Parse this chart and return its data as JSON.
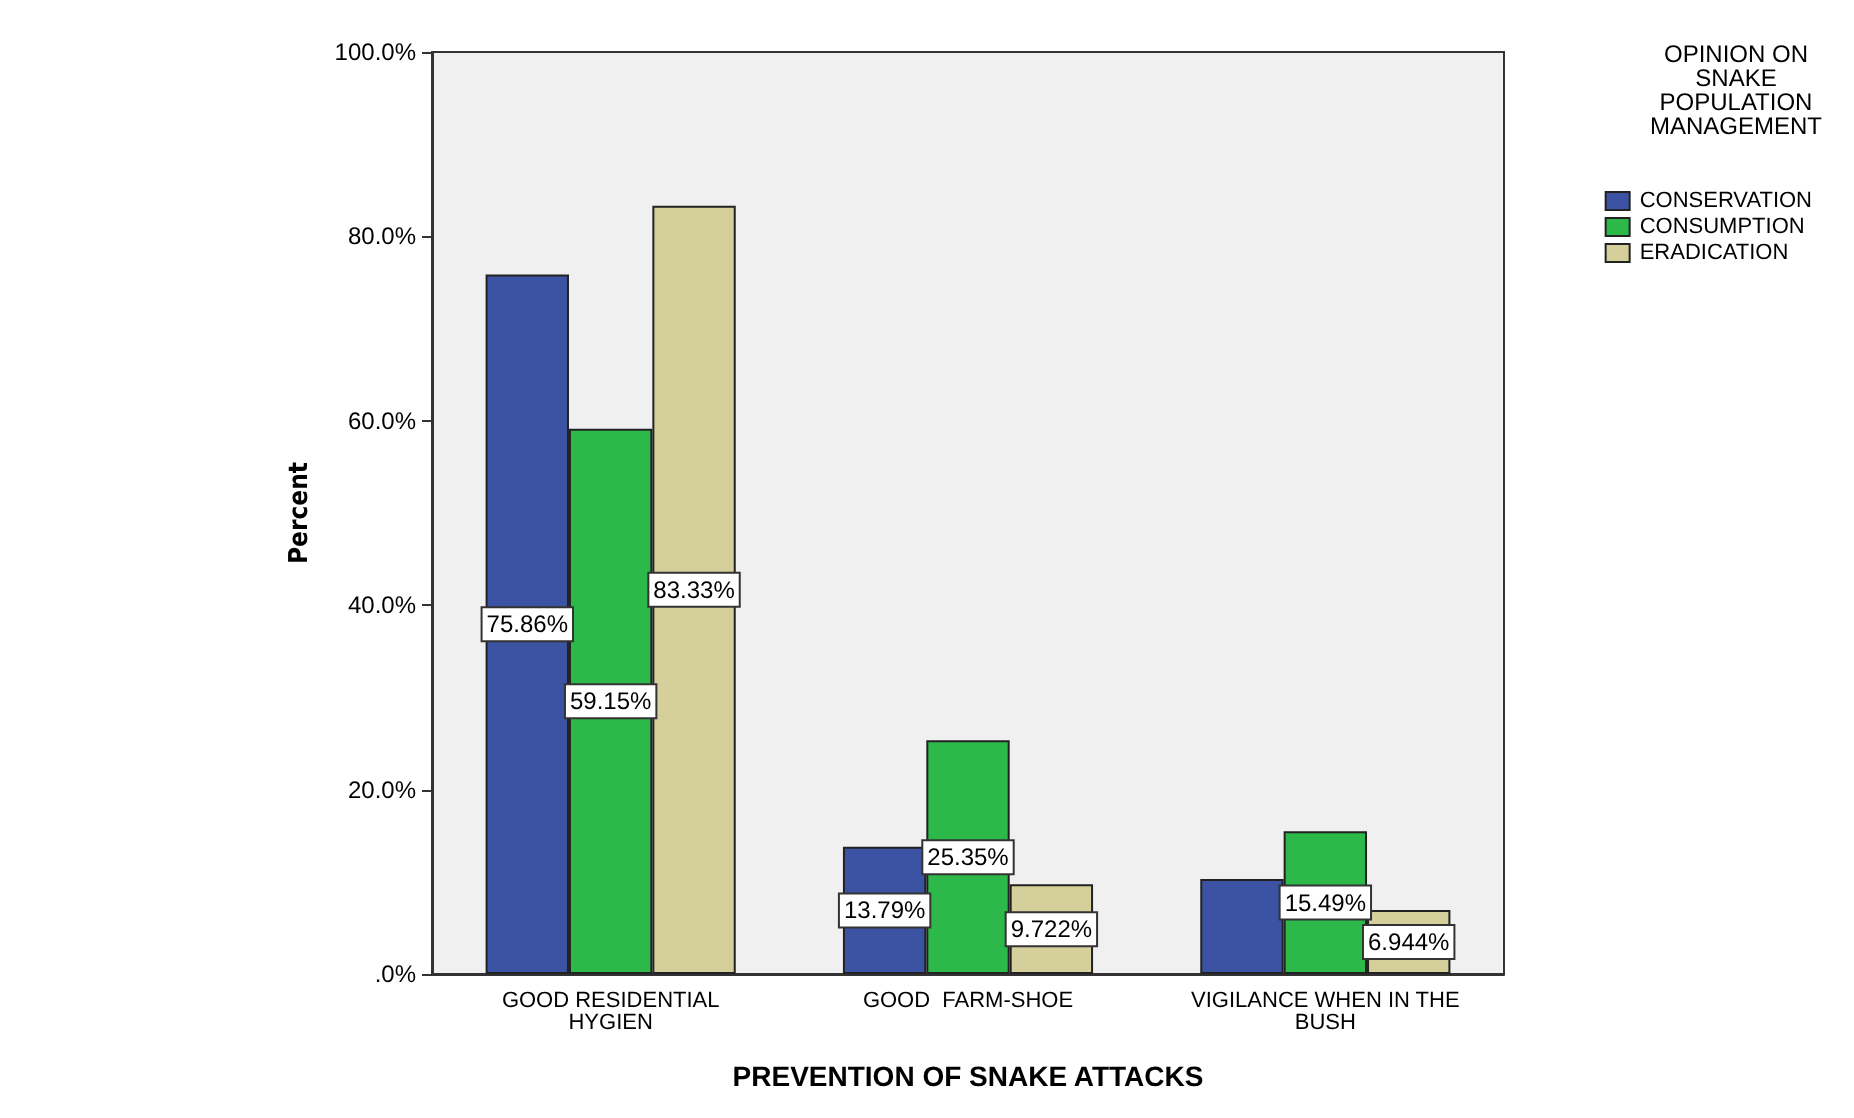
{
  "chart_data": {
    "type": "bar",
    "xlabel": "PREVENTION OF SNAKE ATTACKS",
    "ylabel": "Percent",
    "legend_title": "OPINION ON\nSNAKE\nPOPULATION\nMANAGEMENT",
    "legend": "right",
    "grid": false,
    "categories": [
      "GOOD RESIDENTIAL\nHYGIEN",
      "GOOD  FARM-SHOE",
      "VIGILANCE WHEN IN THE\nBUSH"
    ],
    "ylim": [
      0,
      100
    ],
    "yticks": [
      {
        "value": 0,
        "label": ".0%"
      },
      {
        "value": 20,
        "label": "20.0%"
      },
      {
        "value": 40,
        "label": "40.0%"
      },
      {
        "value": 60,
        "label": "60.0%"
      },
      {
        "value": 80,
        "label": "80.0%"
      },
      {
        "value": 100,
        "label": "100.0%"
      }
    ],
    "series": [
      {
        "name": "CONSERVATION",
        "color": "#3c53a4",
        "values": [
          75.86,
          13.79,
          10.3
        ],
        "value_labels": [
          "75.86%",
          "13.79%",
          null
        ]
      },
      {
        "name": "CONSUMPTION",
        "color": "#2db84a",
        "values": [
          59.15,
          25.35,
          15.49
        ],
        "value_labels": [
          "59.15%",
          "25.35%",
          "15.49%"
        ]
      },
      {
        "name": "ERADICATION",
        "color": "#d5cf9c",
        "values": [
          83.33,
          9.722,
          6.944
        ],
        "value_labels": [
          "83.33%",
          "9.722%",
          "6.944%"
        ]
      }
    ]
  }
}
